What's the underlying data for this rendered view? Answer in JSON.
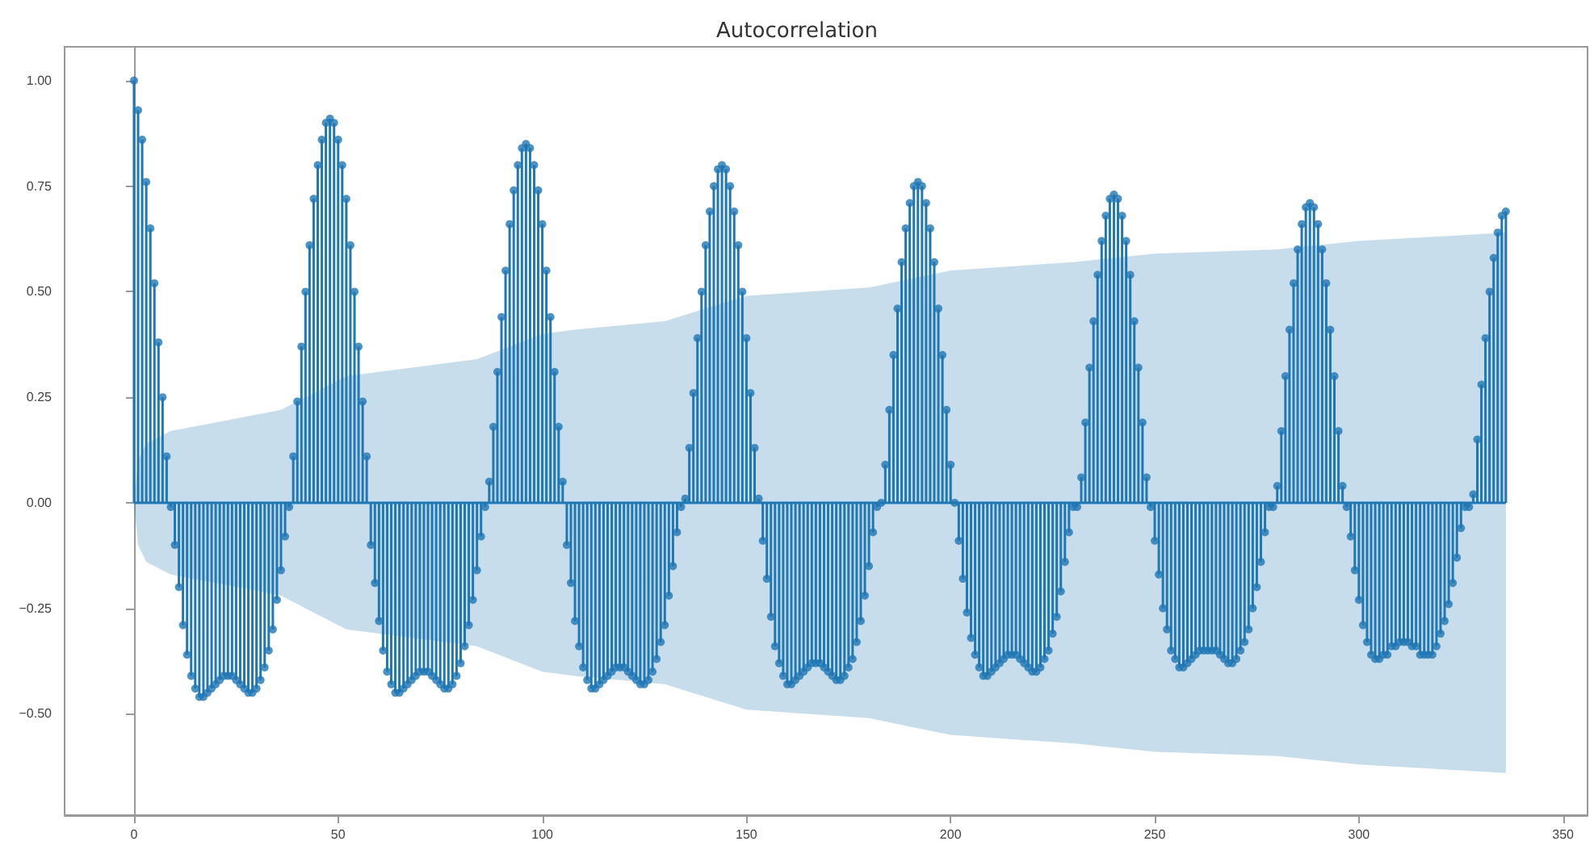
{
  "chart_data": {
    "type": "lollipop",
    "title": "Autocorrelation",
    "xlim": [
      -17,
      356
    ],
    "xticks": [
      0,
      50,
      100,
      150,
      200,
      250,
      300,
      350
    ],
    "ylim": [
      -0.74,
      1.08
    ],
    "yticks": [
      {
        "value": -0.5,
        "label": "−0.50"
      },
      {
        "value": -0.25,
        "label": "−0.25"
      },
      {
        "value": 0,
        "label": "0.00"
      },
      {
        "value": 0.25,
        "label": "0.25"
      },
      {
        "value": 0.5,
        "label": "0.50"
      },
      {
        "value": 0.75,
        "label": "0.75"
      },
      {
        "value": 1,
        "label": "1.00"
      }
    ],
    "series": [
      {
        "color": "#1f77b4",
        "marker": "circle",
        "x": [
          0,
          1,
          2,
          3,
          4,
          5,
          6,
          7,
          8,
          9,
          10,
          11,
          12,
          13,
          14,
          15,
          16,
          17,
          18,
          19,
          20,
          21,
          22,
          23,
          24,
          25,
          26,
          27,
          28,
          29,
          30,
          31,
          32,
          33,
          34,
          35,
          36,
          37,
          38,
          39,
          40,
          41,
          42,
          43,
          44,
          45,
          46,
          47,
          48,
          49,
          50,
          51,
          52,
          53,
          54,
          55,
          56,
          57,
          58,
          59,
          60,
          61,
          62,
          63,
          64,
          65,
          66,
          67,
          68,
          69,
          70,
          71,
          72,
          73,
          74,
          75,
          76,
          77,
          78,
          79,
          80,
          81,
          82,
          83,
          84,
          85,
          86,
          87,
          88,
          89,
          90,
          91,
          92,
          93,
          94,
          95,
          96,
          97,
          98,
          99,
          100,
          101,
          102,
          103,
          104,
          105,
          106,
          107,
          108,
          109,
          110,
          111,
          112,
          113,
          114,
          115,
          116,
          117,
          118,
          119,
          120,
          121,
          122,
          123,
          124,
          125,
          126,
          127,
          128,
          129,
          130,
          131,
          132,
          133,
          134,
          135,
          136,
          137,
          138,
          139,
          140,
          141,
          142,
          143,
          144,
          145,
          146,
          147,
          148,
          149,
          150,
          151,
          152,
          153,
          154,
          155,
          156,
          157,
          158,
          159,
          160,
          161,
          162,
          163,
          164,
          165,
          166,
          167,
          168,
          169,
          170,
          171,
          172,
          173,
          174,
          175,
          176,
          177,
          178,
          179,
          180,
          181,
          182,
          183,
          184,
          185,
          186,
          187,
          188,
          189,
          190,
          191,
          192,
          193,
          194,
          195,
          196,
          197,
          198,
          199,
          200,
          201,
          202,
          203,
          204,
          205,
          206,
          207,
          208,
          209,
          210,
          211,
          212,
          213,
          214,
          215,
          216,
          217,
          218,
          219,
          220,
          221,
          222,
          223,
          224,
          225,
          226,
          227,
          228,
          229,
          230,
          231,
          232,
          233,
          234,
          235,
          236,
          237,
          238,
          239,
          240,
          241,
          242,
          243,
          244,
          245,
          246,
          247,
          248,
          249,
          250,
          251,
          252,
          253,
          254,
          255,
          256,
          257,
          258,
          259,
          260,
          261,
          262,
          263,
          264,
          265,
          266,
          267,
          268,
          269,
          270,
          271,
          272,
          273,
          274,
          275,
          276,
          277,
          278,
          279,
          280,
          281,
          282,
          283,
          284,
          285,
          286,
          287,
          288,
          289,
          290,
          291,
          292,
          293,
          294,
          295,
          296,
          297,
          298,
          299,
          300,
          301,
          302,
          303,
          304,
          305,
          306,
          307,
          308,
          309,
          310,
          311,
          312,
          313,
          314,
          315,
          316,
          317,
          318,
          319,
          320,
          321,
          322,
          323,
          324,
          325,
          326,
          327,
          328,
          329,
          330,
          331,
          332,
          333,
          334,
          335,
          336
        ],
        "values": [
          1.0,
          0.93,
          0.86,
          0.76,
          0.65,
          0.52,
          0.38,
          0.25,
          0.11,
          -0.01,
          -0.1,
          -0.2,
          -0.29,
          -0.36,
          -0.41,
          -0.44,
          -0.46,
          -0.46,
          -0.45,
          -0.44,
          -0.43,
          -0.42,
          -0.41,
          -0.41,
          -0.41,
          -0.42,
          -0.43,
          -0.44,
          -0.45,
          -0.45,
          -0.44,
          -0.42,
          -0.39,
          -0.35,
          -0.3,
          -0.23,
          -0.16,
          -0.08,
          -0.01,
          0.11,
          0.24,
          0.37,
          0.5,
          0.61,
          0.72,
          0.8,
          0.86,
          0.9,
          0.91,
          0.9,
          0.86,
          0.8,
          0.72,
          0.61,
          0.5,
          0.37,
          0.24,
          0.11,
          -0.1,
          -0.19,
          -0.28,
          -0.35,
          -0.4,
          -0.43,
          -0.45,
          -0.45,
          -0.44,
          -0.43,
          -0.42,
          -0.41,
          -0.4,
          -0.4,
          -0.4,
          -0.41,
          -0.42,
          -0.43,
          -0.44,
          -0.44,
          -0.43,
          -0.41,
          -0.38,
          -0.34,
          -0.29,
          -0.23,
          -0.16,
          -0.08,
          -0.01,
          0.05,
          0.18,
          0.31,
          0.44,
          0.55,
          0.66,
          0.74,
          0.8,
          0.84,
          0.85,
          0.84,
          0.8,
          0.74,
          0.66,
          0.55,
          0.44,
          0.31,
          0.18,
          0.05,
          -0.1,
          -0.19,
          -0.28,
          -0.34,
          -0.39,
          -0.42,
          -0.44,
          -0.44,
          -0.43,
          -0.42,
          -0.41,
          -0.4,
          -0.39,
          -0.39,
          -0.39,
          -0.4,
          -0.41,
          -0.42,
          -0.43,
          -0.43,
          -0.42,
          -0.4,
          -0.37,
          -0.33,
          -0.29,
          -0.22,
          -0.15,
          -0.07,
          -0.01,
          0.01,
          0.13,
          0.26,
          0.39,
          0.5,
          0.61,
          0.69,
          0.75,
          0.79,
          0.8,
          0.79,
          0.75,
          0.69,
          0.61,
          0.5,
          0.39,
          0.26,
          0.13,
          0.01,
          -0.09,
          -0.18,
          -0.27,
          -0.34,
          -0.38,
          -0.41,
          -0.43,
          -0.43,
          -0.42,
          -0.41,
          -0.4,
          -0.39,
          -0.38,
          -0.38,
          -0.38,
          -0.39,
          -0.4,
          -0.41,
          -0.42,
          -0.42,
          -0.41,
          -0.39,
          -0.37,
          -0.33,
          -0.28,
          -0.22,
          -0.15,
          -0.07,
          -0.01,
          0.0,
          0.09,
          0.22,
          0.35,
          0.46,
          0.57,
          0.65,
          0.71,
          0.75,
          0.76,
          0.75,
          0.71,
          0.65,
          0.57,
          0.46,
          0.35,
          0.22,
          0.09,
          0.0,
          -0.09,
          -0.18,
          -0.26,
          -0.32,
          -0.36,
          -0.39,
          -0.41,
          -0.41,
          -0.4,
          -0.39,
          -0.38,
          -0.37,
          -0.36,
          -0.36,
          -0.36,
          -0.37,
          -0.38,
          -0.39,
          -0.4,
          -0.4,
          -0.39,
          -0.37,
          -0.35,
          -0.31,
          -0.27,
          -0.21,
          -0.14,
          -0.07,
          -0.01,
          -0.01,
          0.06,
          0.19,
          0.32,
          0.43,
          0.54,
          0.62,
          0.68,
          0.72,
          0.73,
          0.72,
          0.68,
          0.62,
          0.54,
          0.43,
          0.32,
          0.19,
          0.06,
          -0.01,
          -0.09,
          -0.17,
          -0.25,
          -0.3,
          -0.35,
          -0.37,
          -0.39,
          -0.39,
          -0.38,
          -0.37,
          -0.36,
          -0.35,
          -0.35,
          -0.35,
          -0.35,
          -0.35,
          -0.36,
          -0.37,
          -0.38,
          -0.38,
          -0.37,
          -0.35,
          -0.33,
          -0.3,
          -0.25,
          -0.2,
          -0.14,
          -0.07,
          -0.01,
          -0.01,
          0.04,
          0.17,
          0.3,
          0.41,
          0.52,
          0.6,
          0.66,
          0.7,
          0.71,
          0.7,
          0.66,
          0.6,
          0.52,
          0.41,
          0.3,
          0.17,
          0.04,
          -0.01,
          -0.08,
          -0.16,
          -0.23,
          -0.29,
          -0.33,
          -0.36,
          -0.37,
          -0.37,
          -0.36,
          -0.36,
          -0.34,
          -0.34,
          -0.33,
          -0.33,
          -0.33,
          -0.34,
          -0.34,
          -0.36,
          -0.36,
          -0.36,
          -0.36,
          -0.34,
          -0.31,
          -0.28,
          -0.24,
          -0.19,
          -0.13,
          -0.06,
          -0.01,
          -0.01,
          0.02,
          0.15,
          0.28,
          0.39,
          0.5,
          0.58,
          0.64,
          0.68,
          0.69
        ]
      },
      {
        "type": "line",
        "color": "#1f77b4",
        "marker": "none",
        "x": [
          0,
          1,
          3,
          9,
          20,
          36,
          44,
          52,
          60,
          84,
          92,
          100,
          108,
          130,
          140,
          150,
          180,
          190,
          200,
          230,
          240,
          250,
          280,
          290,
          300,
          336
        ],
        "values": [
          0,
          0,
          0,
          0,
          0,
          0,
          0,
          0,
          0,
          0,
          0,
          0,
          0,
          0,
          0,
          0,
          0,
          0,
          0,
          0,
          0,
          0,
          0,
          0,
          0,
          0
        ],
        "upper": [
          0,
          0.1,
          0.14,
          0.17,
          0.19,
          0.22,
          0.26,
          0.3,
          0.31,
          0.34,
          0.37,
          0.4,
          0.41,
          0.43,
          0.46,
          0.49,
          0.51,
          0.53,
          0.55,
          0.57,
          0.58,
          0.59,
          0.6,
          0.61,
          0.62,
          0.64
        ],
        "lower": [
          0,
          -0.1,
          -0.14,
          -0.17,
          -0.19,
          -0.22,
          -0.26,
          -0.3,
          -0.31,
          -0.34,
          -0.37,
          -0.4,
          -0.41,
          -0.43,
          -0.46,
          -0.49,
          -0.51,
          -0.53,
          -0.55,
          -0.57,
          -0.58,
          -0.59,
          -0.6,
          -0.61,
          -0.62,
          -0.64
        ]
      }
    ]
  }
}
